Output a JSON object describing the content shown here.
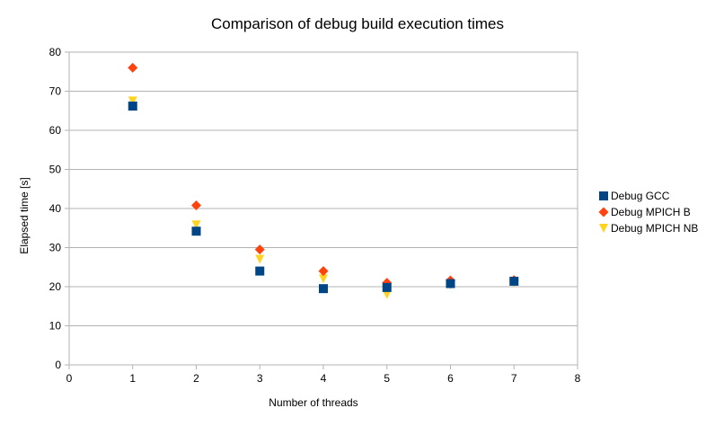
{
  "chart_data": {
    "type": "scatter",
    "title": "Comparison of debug build execution times",
    "xlabel": "Number of threads",
    "ylabel": "Elapsed time [s]",
    "xlim": [
      0,
      8
    ],
    "ylim": [
      0,
      80
    ],
    "xticks": [
      "0",
      "1",
      "2",
      "3",
      "4",
      "5",
      "6",
      "7",
      "8"
    ],
    "yticks": [
      "0",
      "10",
      "20",
      "30",
      "40",
      "50",
      "60",
      "70",
      "80"
    ],
    "grid": "horizontal",
    "legend_position": "right",
    "series": [
      {
        "name": "Debug GCC",
        "marker": "square",
        "color": "#004586",
        "points": [
          [
            1,
            66.2
          ],
          [
            2,
            34.2
          ],
          [
            3,
            24.0
          ],
          [
            4,
            19.5
          ],
          [
            5,
            19.8
          ],
          [
            6,
            20.8
          ],
          [
            7,
            21.4
          ]
        ]
      },
      {
        "name": "Debug MPICH B",
        "marker": "diamond",
        "color": "#ff420e",
        "points": [
          [
            1,
            76.0
          ],
          [
            2,
            40.8
          ],
          [
            3,
            29.5
          ],
          [
            4,
            24.0
          ],
          [
            5,
            21.0
          ],
          [
            6,
            21.6
          ],
          [
            7,
            21.7
          ]
        ]
      },
      {
        "name": "Debug MPICH NB",
        "marker": "triangle-down",
        "color": "#ffd320",
        "points": [
          [
            1,
            67.5
          ],
          [
            2,
            35.8
          ],
          [
            3,
            27.0
          ],
          [
            4,
            22.0
          ],
          [
            5,
            18.0
          ],
          [
            6,
            20.5
          ],
          [
            7,
            21.0
          ]
        ]
      }
    ]
  }
}
